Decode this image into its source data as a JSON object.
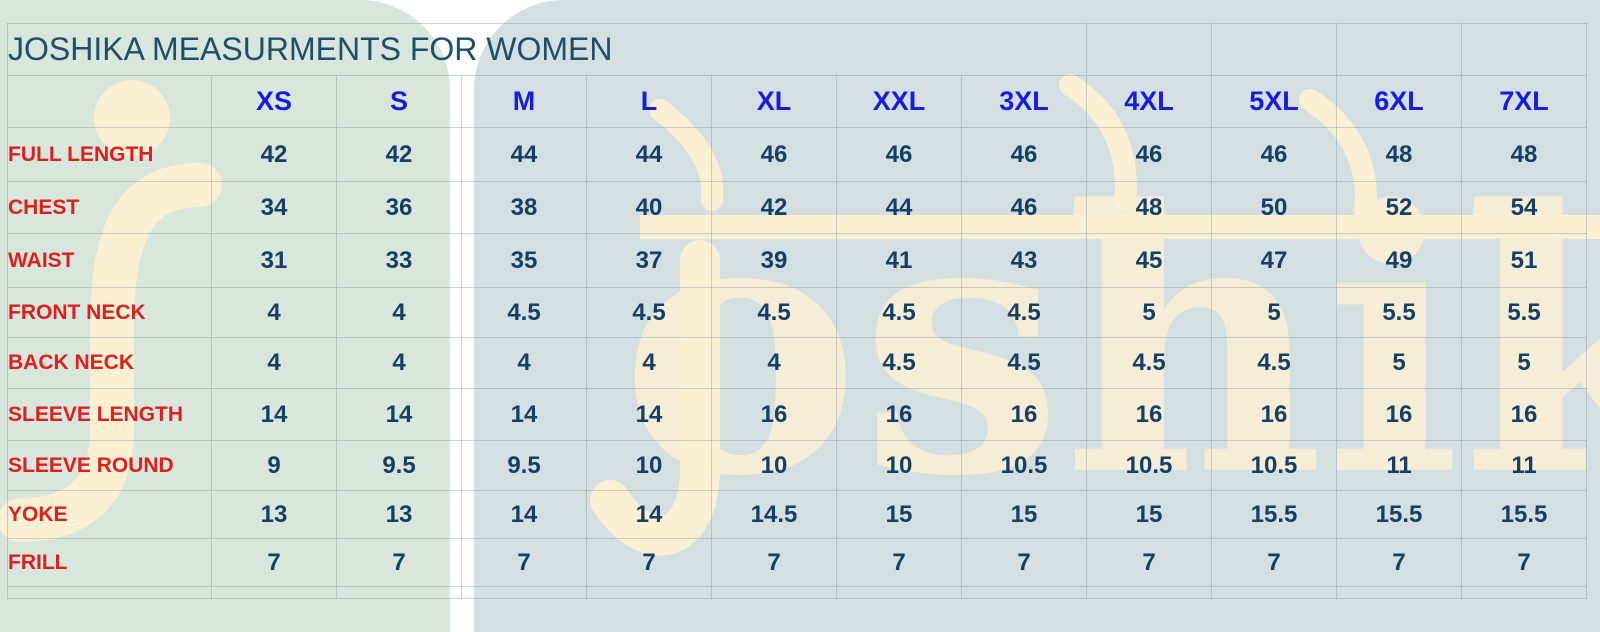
{
  "title": "JOSHIKA MEASURMENTS FOR WOMEN",
  "watermark_text": "joshika",
  "colors": {
    "title": "#1d4f6b",
    "size_headers": "#1a1ae0",
    "row_labels": "#dd1f1f",
    "values": "#163f66",
    "bg_left": "#d8e6dc",
    "bg_right": "#d3dfe1",
    "watermark": "#fbf0d4"
  },
  "sizes": [
    "XS",
    "S",
    "M",
    "L",
    "XL",
    "XXL",
    "3XL",
    "4XL",
    "5XL",
    "6XL",
    "7XL"
  ],
  "rows": [
    {
      "label": "FULL LENGTH",
      "values": [
        "42",
        "42",
        "44",
        "44",
        "46",
        "46",
        "46",
        "46",
        "46",
        "48",
        "48"
      ]
    },
    {
      "label": "CHEST",
      "values": [
        "34",
        "36",
        "38",
        "40",
        "42",
        "44",
        "46",
        "48",
        "50",
        "52",
        "54"
      ]
    },
    {
      "label": "WAIST",
      "values": [
        "31",
        "33",
        "35",
        "37",
        "39",
        "41",
        "43",
        "45",
        "47",
        "49",
        "51"
      ]
    },
    {
      "label": "FRONT NECK",
      "values": [
        "4",
        "4",
        "4.5",
        "4.5",
        "4.5",
        "4.5",
        "4.5",
        "5",
        "5",
        "5.5",
        "5.5"
      ]
    },
    {
      "label": "BACK NECK",
      "values": [
        "4",
        "4",
        "4",
        "4",
        "4",
        "4.5",
        "4.5",
        "4.5",
        "4.5",
        "5",
        "5"
      ]
    },
    {
      "label": "SLEEVE LENGTH",
      "values": [
        "14",
        "14",
        "14",
        "14",
        "16",
        "16",
        "16",
        "16",
        "16",
        "16",
        "16"
      ]
    },
    {
      "label": "SLEEVE ROUND",
      "values": [
        "9",
        "9.5",
        "9.5",
        "10",
        "10",
        "10",
        "10.5",
        "10.5",
        "10.5",
        "11",
        "11"
      ]
    },
    {
      "label": "YOKE",
      "values": [
        "13",
        "13",
        "14",
        "14",
        "14.5",
        "15",
        "15",
        "15",
        "15.5",
        "15.5",
        "15.5"
      ]
    },
    {
      "label": "FRILL",
      "values": [
        "7",
        "7",
        "7",
        "7",
        "7",
        "7",
        "7",
        "7",
        "7",
        "7",
        "7"
      ]
    }
  ]
}
